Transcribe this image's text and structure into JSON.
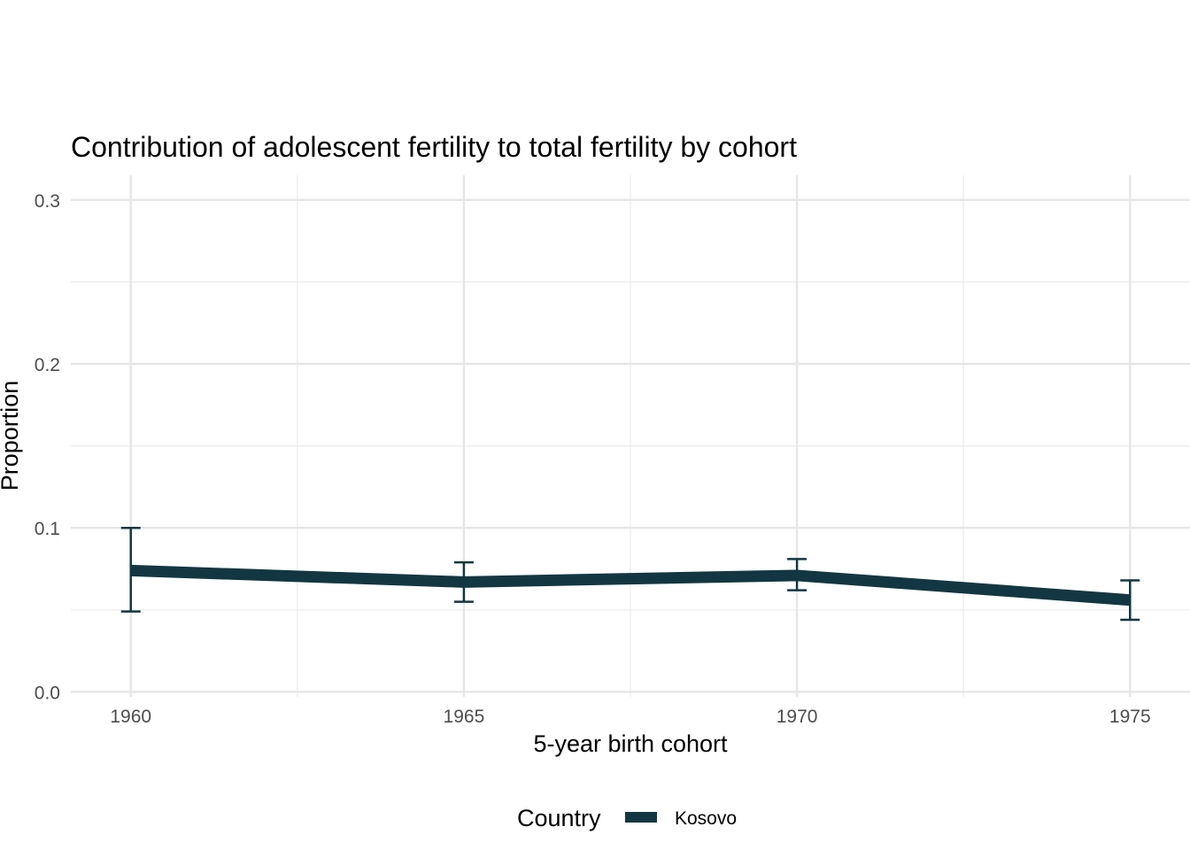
{
  "chart_data": {
    "type": "line",
    "title": "Contribution of adolescent fertility to total fertility by cohort",
    "xlabel": "5-year birth cohort",
    "ylabel": "Proportion",
    "x": [
      1960,
      1965,
      1970,
      1975
    ],
    "xticks": [
      "1960",
      "1965",
      "1970",
      "1975"
    ],
    "xlim": [
      1959.1,
      1975.9
    ],
    "ylim": [
      -0.003,
      0.315
    ],
    "yticks": [
      "0.0",
      "0.1",
      "0.2",
      "0.3"
    ],
    "ytick_values": [
      0.0,
      0.1,
      0.2,
      0.3
    ],
    "grid": true,
    "legend_position": "bottom",
    "legend_title": "Country",
    "series": [
      {
        "name": "Kosovo",
        "color": "#133742",
        "values": [
          0.074,
          0.067,
          0.071,
          0.056
        ],
        "lower": [
          0.049,
          0.055,
          0.062,
          0.044
        ],
        "upper": [
          0.1,
          0.079,
          0.081,
          0.068
        ]
      }
    ]
  }
}
